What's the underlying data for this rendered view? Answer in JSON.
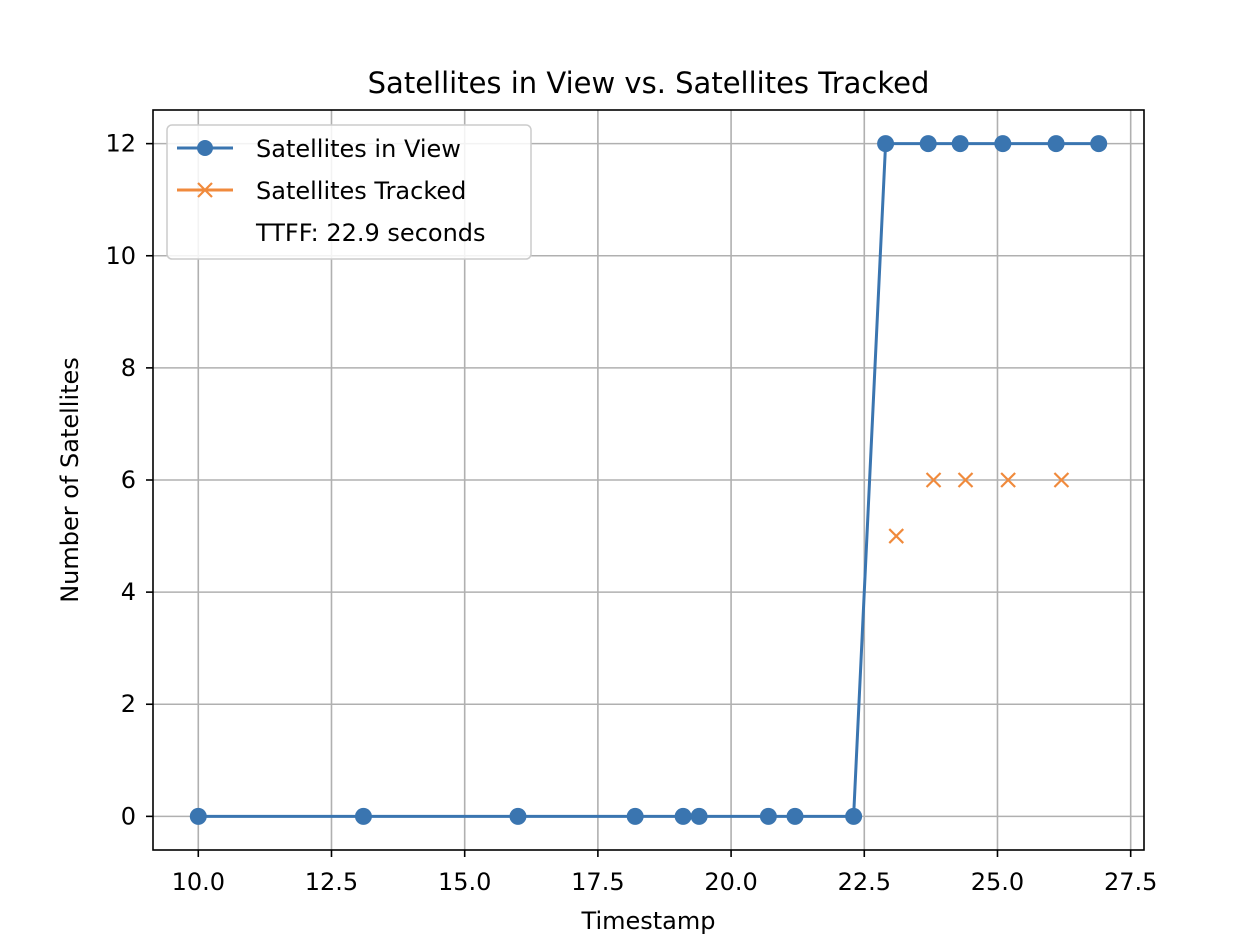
{
  "chart_data": {
    "type": "line",
    "title": "Satellites in View vs. Satellites Tracked",
    "xlabel": "Timestamp",
    "ylabel": "Number of Satellites",
    "xlim": [
      9.15,
      27.75
    ],
    "ylim": [
      -0.6,
      12.6
    ],
    "xticks": [
      10.0,
      12.5,
      15.0,
      17.5,
      20.0,
      22.5,
      25.0,
      27.5
    ],
    "xtick_labels": [
      "10.0",
      "12.5",
      "15.0",
      "17.5",
      "20.0",
      "22.5",
      "25.0",
      "27.5"
    ],
    "yticks": [
      0,
      2,
      4,
      6,
      8,
      10,
      12
    ],
    "ytick_labels": [
      "0",
      "2",
      "4",
      "6",
      "8",
      "10",
      "12"
    ],
    "grid": true,
    "legend_position": "top-left",
    "series": [
      {
        "name": "Satellites in View",
        "color": "#3a75b0",
        "marker": "circle",
        "line": true,
        "points": [
          [
            10.0,
            0
          ],
          [
            13.1,
            0
          ],
          [
            16.0,
            0
          ],
          [
            18.2,
            0
          ],
          [
            19.1,
            0
          ],
          [
            19.4,
            0
          ],
          [
            20.7,
            0
          ],
          [
            21.2,
            0
          ],
          [
            22.3,
            0
          ],
          [
            22.9,
            12
          ],
          [
            23.7,
            12
          ],
          [
            24.3,
            12
          ],
          [
            25.1,
            12
          ],
          [
            26.1,
            12
          ],
          [
            26.9,
            12
          ]
        ]
      },
      {
        "name": "Satellites Tracked",
        "color": "#f08a3c",
        "marker": "x",
        "line": false,
        "points": [
          [
            23.1,
            5
          ],
          [
            23.8,
            6
          ],
          [
            24.4,
            6
          ],
          [
            25.2,
            6
          ],
          [
            26.2,
            6
          ]
        ]
      }
    ],
    "legend_extra": "TTFF: 22.9 seconds"
  }
}
